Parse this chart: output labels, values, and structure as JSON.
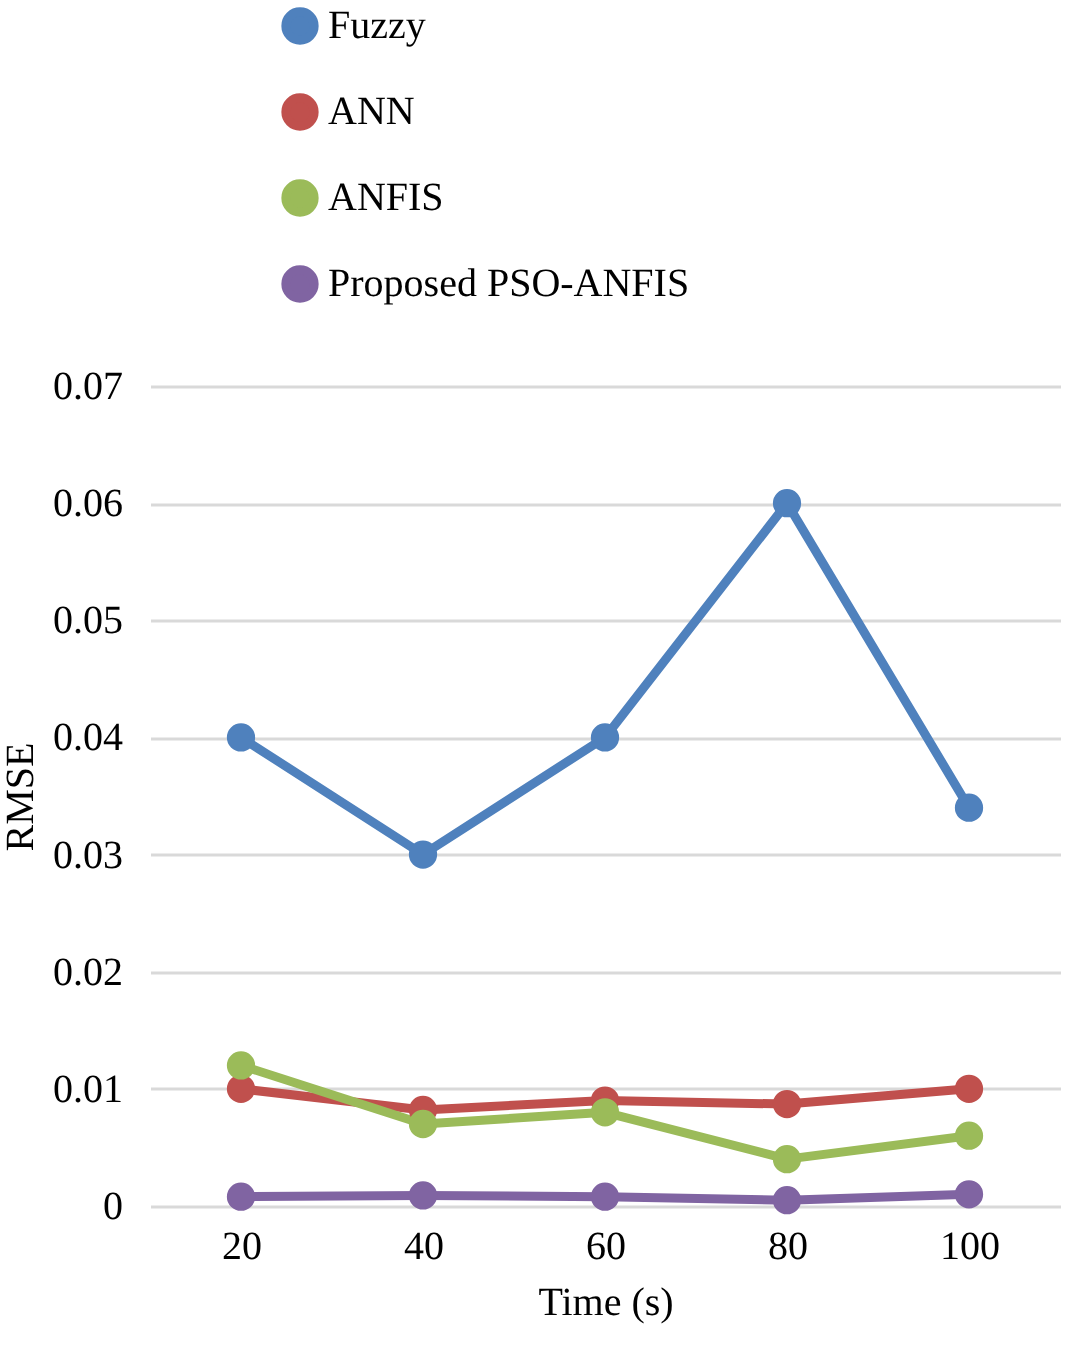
{
  "chart_data": {
    "type": "line",
    "xlabel": "Time (s)",
    "ylabel": "RMSE",
    "categories": [
      "20",
      "40",
      "60",
      "80",
      "100"
    ],
    "series": [
      {
        "name": "Fuzzy",
        "color": "#4f81bd",
        "values": [
          0.04,
          0.03,
          0.04,
          0.06,
          0.034
        ]
      },
      {
        "name": "ANN",
        "color": "#c0504d",
        "values": [
          0.01,
          0.0082,
          0.009,
          0.0087,
          0.01
        ]
      },
      {
        "name": "ANFIS",
        "color": "#9bbb59",
        "values": [
          0.012,
          0.007,
          0.008,
          0.004,
          0.006
        ]
      },
      {
        "name": "Proposed PSO-ANFIS",
        "color": "#8064a2",
        "values": [
          0.0008,
          0.0009,
          0.0008,
          0.0005,
          0.001
        ]
      }
    ],
    "ylim": [
      0,
      0.07
    ],
    "yticks": [
      0,
      0.01,
      0.02,
      0.03,
      0.04,
      0.05,
      0.06,
      0.07
    ],
    "grid": "y",
    "legend": "top",
    "marker": "circle",
    "line_style": "solid"
  }
}
